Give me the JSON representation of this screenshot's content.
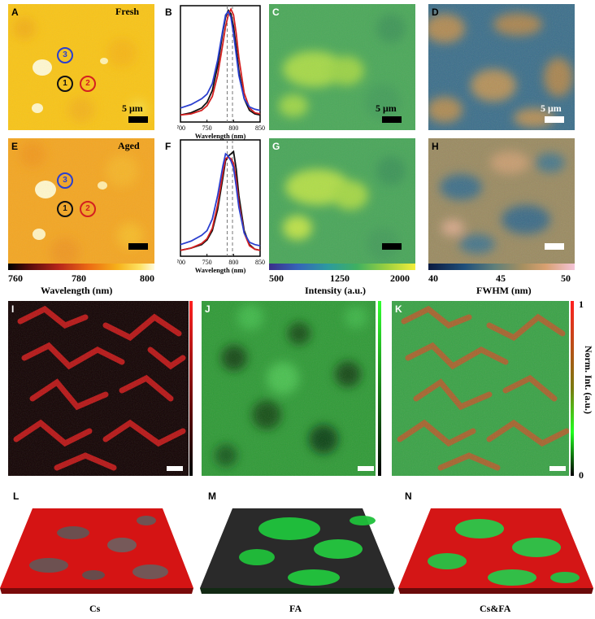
{
  "panels": {
    "A": "A",
    "B": "B",
    "C": "C",
    "D": "D",
    "E": "E",
    "F": "F",
    "G": "G",
    "H": "H",
    "I": "I",
    "J": "J",
    "K": "K",
    "L": "L",
    "M": "M",
    "N": "N"
  },
  "labels": {
    "fresh": "Fresh",
    "aged": "Aged",
    "scale": "5 μm",
    "wavelength_axis": "Wavelength (nm)",
    "intensity_axis": "Intensity (a.u.)",
    "fwhm_axis": "FWHM (nm)",
    "norm_int": "Norm. Int. (a.u.)",
    "cs": "Cs",
    "fa": "FA",
    "csfa": "Cs&FA"
  },
  "markers": {
    "one": "1",
    "two": "2",
    "three": "3"
  },
  "colorbars": {
    "wavelength": {
      "min": "760",
      "mid": "780",
      "max": "800"
    },
    "intensity": {
      "min": "500",
      "mid": "1250",
      "max": "2000"
    },
    "fwhm": {
      "min": "40",
      "mid": "45",
      "max": "50"
    },
    "norm": {
      "max": "1",
      "min": "0"
    }
  },
  "colors": {
    "point1": "#111111",
    "point2": "#d42020",
    "point3": "#2b3fcf"
  },
  "chart_data": [
    {
      "type": "line",
      "panel": "B",
      "xlabel": "Wavelength (nm)",
      "xlim": [
        700,
        850
      ],
      "xticks": [
        700,
        750,
        800,
        850
      ],
      "reference_lines": [
        788,
        798
      ],
      "series": [
        {
          "name": "1",
          "x": [
            700,
            720,
            740,
            750,
            760,
            770,
            780,
            785,
            790,
            795,
            800,
            805,
            810,
            820,
            830,
            840,
            850
          ],
          "y": [
            0.06,
            0.08,
            0.12,
            0.17,
            0.27,
            0.48,
            0.78,
            0.9,
            0.96,
            0.93,
            0.82,
            0.64,
            0.44,
            0.2,
            0.1,
            0.07,
            0.06
          ]
        },
        {
          "name": "2",
          "x": [
            700,
            720,
            740,
            750,
            760,
            770,
            780,
            785,
            790,
            795,
            800,
            805,
            810,
            820,
            830,
            840,
            850
          ],
          "y": [
            0.06,
            0.07,
            0.1,
            0.14,
            0.22,
            0.4,
            0.68,
            0.82,
            0.92,
            0.97,
            0.92,
            0.76,
            0.55,
            0.25,
            0.12,
            0.08,
            0.07
          ]
        },
        {
          "name": "3",
          "x": [
            700,
            720,
            740,
            750,
            760,
            770,
            780,
            785,
            790,
            795,
            800,
            805,
            810,
            820,
            830,
            840,
            850
          ],
          "y": [
            0.12,
            0.15,
            0.2,
            0.24,
            0.33,
            0.53,
            0.8,
            0.92,
            0.95,
            0.9,
            0.76,
            0.58,
            0.4,
            0.2,
            0.13,
            0.11,
            0.1
          ]
        }
      ]
    },
    {
      "type": "line",
      "panel": "F",
      "xlabel": "Wavelength (nm)",
      "xlim": [
        700,
        850
      ],
      "xticks": [
        700,
        750,
        800,
        850
      ],
      "reference_lines": [
        788,
        798
      ],
      "series": [
        {
          "name": "1",
          "x": [
            700,
            720,
            740,
            750,
            760,
            770,
            780,
            785,
            790,
            795,
            800,
            805,
            810,
            820,
            830,
            840,
            850
          ],
          "y": [
            0.05,
            0.07,
            0.1,
            0.14,
            0.22,
            0.4,
            0.68,
            0.82,
            0.86,
            0.88,
            0.9,
            0.75,
            0.52,
            0.22,
            0.1,
            0.06,
            0.05
          ]
        },
        {
          "name": "2",
          "x": [
            700,
            720,
            740,
            750,
            760,
            770,
            780,
            785,
            790,
            795,
            800,
            805,
            810,
            820,
            830,
            840,
            850
          ],
          "y": [
            0.05,
            0.07,
            0.11,
            0.15,
            0.24,
            0.44,
            0.72,
            0.84,
            0.85,
            0.84,
            0.8,
            0.66,
            0.46,
            0.2,
            0.09,
            0.06,
            0.05
          ]
        },
        {
          "name": "3",
          "x": [
            700,
            720,
            740,
            750,
            760,
            770,
            780,
            785,
            790,
            795,
            800,
            805,
            810,
            820,
            830,
            840,
            850
          ],
          "y": [
            0.1,
            0.13,
            0.18,
            0.22,
            0.32,
            0.52,
            0.78,
            0.88,
            0.86,
            0.82,
            0.76,
            0.6,
            0.42,
            0.2,
            0.12,
            0.1,
            0.09
          ]
        }
      ]
    }
  ]
}
